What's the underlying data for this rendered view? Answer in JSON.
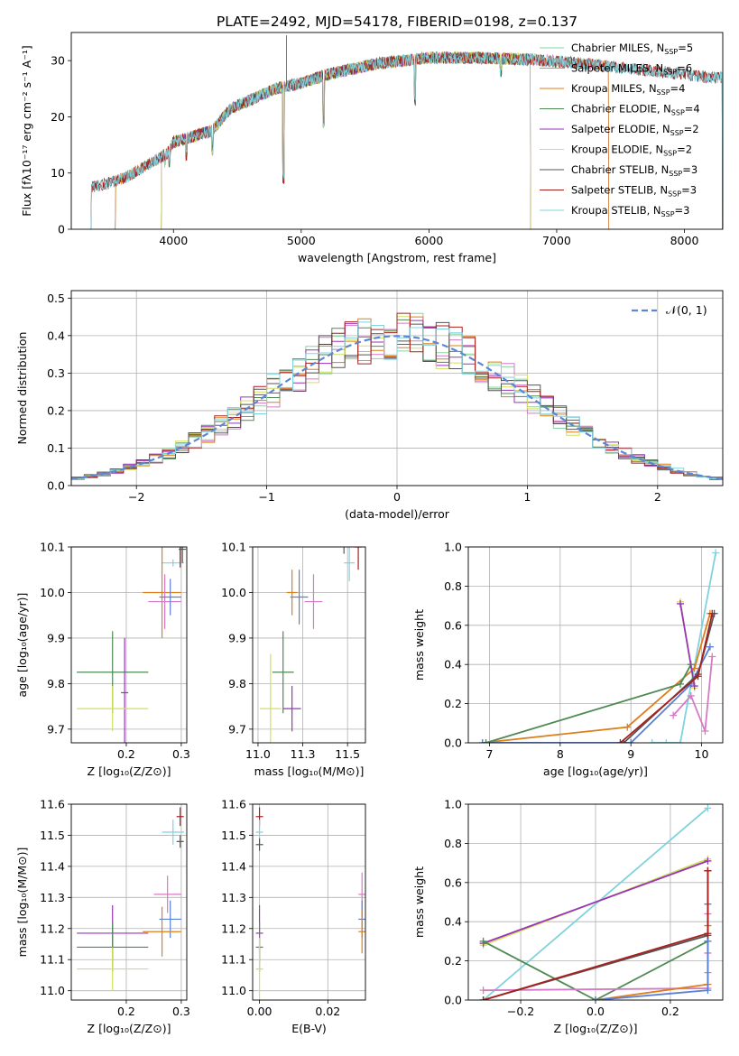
{
  "figure_title": "PLATE=2492, MJD=54178, FIBERID=0198, z=0.137",
  "colors": {
    "Chabrier MILES": "#8ad3a0",
    "Salpeter MILES": "#d57ac5",
    "Kroupa MILES": "#dd7e1b",
    "Chabrier ELODIE": "#4f8a54",
    "Salpeter ELODIE": "#9a34b9",
    "Kroupa ELODIE": "#d2e05b",
    "Chabrier STELIB": "#555555",
    "Salpeter STELIB": "#a8201e",
    "Kroupa STELIB": "#7fd3dd",
    "normal": "#5b87d4",
    "extra_blue": "#5a7fd6"
  },
  "chart_data": [
    {
      "type": "line",
      "panel": "spectrum",
      "xlabel": "wavelength [Angstrom, rest frame]",
      "ylabel": "Flux [fλ10⁻¹⁷ erg cm⁻² s⁻¹ A⁻¹]",
      "xlim": [
        3200,
        8300
      ],
      "ylim": [
        0,
        35
      ],
      "xticks": [
        4000,
        5000,
        6000,
        7000,
        8000
      ],
      "yticks": [
        0,
        10,
        20,
        30
      ],
      "legend": {
        "placement": "top-right",
        "entries": [
          {
            "model": "Chabrier MILES",
            "n": "5"
          },
          {
            "model": "Salpeter MILES",
            "n": "6"
          },
          {
            "model": "Kroupa MILES",
            "n": "4"
          },
          {
            "model": "Chabrier ELODIE",
            "n": "4"
          },
          {
            "model": "Salpeter ELODIE",
            "n": "2"
          },
          {
            "model": "Kroupa ELODIE",
            "n": "2"
          },
          {
            "model": "Chabrier STELIB",
            "n": "3"
          },
          {
            "model": "Salpeter STELIB",
            "n": "3"
          },
          {
            "model": "Kroupa STELIB",
            "n": "3"
          }
        ]
      },
      "continuum": [
        [
          3350,
          7.5
        ],
        [
          3500,
          8.2
        ],
        [
          3650,
          9.5
        ],
        [
          3800,
          11.5
        ],
        [
          3950,
          13.5
        ],
        [
          4000,
          15.5
        ],
        [
          4150,
          16.5
        ],
        [
          4300,
          17.5
        ],
        [
          4450,
          21.5
        ],
        [
          4600,
          23
        ],
        [
          4800,
          25
        ],
        [
          5000,
          26
        ],
        [
          5200,
          27.5
        ],
        [
          5400,
          28.5
        ],
        [
          5600,
          29.5
        ],
        [
          5800,
          30
        ],
        [
          6000,
          30.5
        ],
        [
          6400,
          30.5
        ],
        [
          6800,
          30.2
        ],
        [
          7200,
          29.5
        ],
        [
          7600,
          28.5
        ],
        [
          7900,
          27.8
        ],
        [
          8200,
          27
        ]
      ],
      "features": [
        [
          3934,
          11
        ],
        [
          3968,
          11
        ],
        [
          4102,
          12
        ],
        [
          4305,
          13
        ],
        [
          4861,
          8
        ],
        [
          5175,
          18
        ],
        [
          5890,
          22
        ],
        [
          6563,
          27
        ]
      ],
      "wavelength_ranges": {
        "Chabrier MILES": [
          3540,
          7410
        ],
        "Salpeter MILES": [
          3540,
          7410
        ],
        "Kroupa MILES": [
          3540,
          7410
        ],
        "Chabrier ELODIE": [
          3900,
          6800
        ],
        "Salpeter ELODIE": [
          3900,
          6800
        ],
        "Kroupa ELODIE": [
          3900,
          6800
        ],
        "Chabrier STELIB": [
          3350,
          8300
        ],
        "Salpeter STELIB": [
          3350,
          8300
        ],
        "Kroupa STELIB": [
          3350,
          8300
        ]
      },
      "spike": [
        4885,
        34.5
      ]
    },
    {
      "type": "histogram",
      "panel": "residuals",
      "xlabel": "(data-model)/error",
      "ylabel": "Normed distribution",
      "xlim": [
        -2.5,
        2.5
      ],
      "ylim": [
        0,
        0.52
      ],
      "xticks": [
        -2,
        -1,
        0,
        1,
        2
      ],
      "yticks": [
        0.0,
        0.1,
        0.2,
        0.3,
        0.4,
        0.5
      ],
      "bin_width": 0.1,
      "grid": true,
      "legend": {
        "placement": "top-right",
        "entries": [
          "𝒩(0, 1)"
        ]
      },
      "normal_curve": {
        "mean": 0,
        "sigma": 1
      }
    },
    {
      "type": "scatter",
      "panel": "age_vs_Z",
      "xlabel": "Z [log₁₀(Z/Z⊙)]",
      "ylabel": "age  [log₁₀(age/yr)]",
      "xlim": [
        0.1,
        0.31
      ],
      "ylim": [
        9.67,
        10.1
      ],
      "xticks": [
        0.2,
        0.3
      ],
      "yticks": [
        9.7,
        9.8,
        9.9,
        10.0,
        10.1
      ],
      "points": [
        {
          "model": "Kroupa STELIB",
          "x": 0.285,
          "y": 10.065,
          "xerr": 0.02,
          "yerr": 0
        },
        {
          "model": "Salpeter STELIB",
          "x": 0.298,
          "y": 10.105,
          "xerr": 0.005,
          "yerr": 0.05
        },
        {
          "model": "Chabrier STELIB",
          "x": 0.302,
          "y": 10.095,
          "xerr": 0.003,
          "yerr": 0.03
        },
        {
          "model": "Kroupa MILES",
          "x": 0.265,
          "y": 10.0,
          "xerr": 0.035,
          "yerr": 0.1
        },
        {
          "model": "Salpeter MILES",
          "x": 0.27,
          "y": 9.98,
          "xerr": 0.03,
          "yerr": 0.06
        },
        {
          "model": "extra",
          "x": 0.28,
          "y": 9.99,
          "xerr": 0.02,
          "yerr": 0.04
        },
        {
          "model": "Chabrier ELODIE",
          "x": 0.175,
          "y": 9.825,
          "xerr": 0.065,
          "yerr": 0.09
        },
        {
          "model": "Salpeter ELODIE",
          "x": 0.197,
          "y": 9.78,
          "xerr": 0,
          "yerr": 0.12
        },
        {
          "model": "Kroupa ELODIE",
          "x": 0.175,
          "y": 9.745,
          "xerr": 0.065,
          "yerr": 0.05
        }
      ]
    },
    {
      "type": "scatter",
      "panel": "age_vs_mass",
      "xlabel": "mass [log₁₀(M/M⊙)]",
      "xlim": [
        10.97,
        11.6
      ],
      "ylim": [
        9.67,
        10.1
      ],
      "xticks": [
        11.0,
        11.25,
        11.5
      ],
      "yticks": [
        9.7,
        9.8,
        9.9,
        10.0,
        10.1
      ],
      "points": [
        {
          "model": "Kroupa STELIB",
          "x": 11.51,
          "y": 10.065,
          "xerr": 0.03,
          "yerr": 0.04
        },
        {
          "model": "Chabrier STELIB",
          "x": 11.48,
          "y": 10.105,
          "xerr": 0.01,
          "yerr": 0.02
        },
        {
          "model": "Salpeter STELIB",
          "x": 11.56,
          "y": 10.1,
          "xerr": 0.01,
          "yerr": 0.05
        },
        {
          "model": "extra",
          "x": 11.23,
          "y": 9.99,
          "xerr": 0.05,
          "yerr": 0.06
        },
        {
          "model": "Kroupa MILES",
          "x": 11.19,
          "y": 10.0,
          "xerr": 0.03,
          "yerr": 0.05
        },
        {
          "model": "Salpeter MILES",
          "x": 11.31,
          "y": 9.98,
          "xerr": 0.05,
          "yerr": 0.06
        },
        {
          "model": "Chabrier ELODIE",
          "x": 11.14,
          "y": 9.825,
          "xerr": 0.06,
          "yerr": 0.09
        },
        {
          "model": "Salpeter ELODIE",
          "x": 11.19,
          "y": 9.745,
          "xerr": 0.05,
          "yerr": 0.05
        },
        {
          "model": "Kroupa ELODIE",
          "x": 11.07,
          "y": 9.745,
          "xerr": 0.06,
          "yerr": 0.12
        }
      ]
    },
    {
      "type": "line",
      "panel": "weight_vs_age",
      "xlabel": "age  [log₁₀(age/yr)]",
      "ylabel": "mass weight",
      "xlim": [
        6.7,
        10.3
      ],
      "ylim": [
        0,
        1
      ],
      "xticks": [
        7,
        8,
        9,
        10
      ],
      "yticks": [
        0.0,
        0.2,
        0.4,
        0.6,
        0.8,
        1.0
      ],
      "series": [
        {
          "model": "Kroupa STELIB",
          "points": [
            [
              9.3,
              0.0
            ],
            [
              9.5,
              0.0
            ],
            [
              9.7,
              0.0
            ],
            [
              9.8,
              0.2
            ],
            [
              10.2,
              0.97
            ]
          ]
        },
        {
          "model": "Kroupa ELODIE",
          "points": [
            [
              9.7,
              0.72
            ],
            [
              9.9,
              0.28
            ]
          ]
        },
        {
          "model": "Kroupa MILES",
          "points": [
            [
              6.9,
              0.0
            ],
            [
              8.95,
              0.08
            ],
            [
              9.9,
              0.38
            ],
            [
              10.12,
              0.66
            ]
          ]
        },
        {
          "model": "extra",
          "points": [
            [
              6.9,
              0.0
            ],
            [
              9.0,
              0.0
            ],
            [
              9.85,
              0.3
            ],
            [
              10.12,
              0.49
            ]
          ]
        },
        {
          "model": "Chabrier ELODIE",
          "points": [
            [
              6.95,
              0.0
            ],
            [
              9.7,
              0.3
            ],
            [
              9.85,
              0.4
            ]
          ]
        },
        {
          "model": "Salpeter MILES",
          "points": [
            [
              9.6,
              0.14
            ],
            [
              9.85,
              0.24
            ],
            [
              10.05,
              0.06
            ],
            [
              10.15,
              0.44
            ]
          ]
        },
        {
          "model": "Salpeter ELODIE",
          "points": [
            [
              9.7,
              0.71
            ],
            [
              9.9,
              0.29
            ]
          ]
        },
        {
          "model": "Chabrier STELIB",
          "points": [
            [
              8.9,
              0.0
            ],
            [
              9.95,
              0.35
            ],
            [
              10.18,
              0.66
            ]
          ]
        },
        {
          "model": "Salpeter STELIB",
          "points": [
            [
              8.85,
              0.0
            ],
            [
              9.95,
              0.34
            ],
            [
              10.15,
              0.66
            ]
          ]
        }
      ]
    },
    {
      "type": "scatter",
      "panel": "mass_vs_Z",
      "xlabel": "Z [log₁₀(Z/Z⊙)]",
      "ylabel": "mass [log₁₀(M/M⊙)]",
      "xlim": [
        0.1,
        0.31
      ],
      "ylim": [
        10.97,
        11.6
      ],
      "xticks": [
        0.2,
        0.3
      ],
      "yticks": [
        11.0,
        11.1,
        11.2,
        11.3,
        11.4,
        11.5,
        11.6
      ],
      "points": [
        {
          "model": "Salpeter STELIB",
          "x": 0.298,
          "y": 11.56,
          "xerr": 0.005,
          "yerr": 0.03
        },
        {
          "model": "Kroupa STELIB",
          "x": 0.285,
          "y": 11.51,
          "xerr": 0.02,
          "yerr": 0.04
        },
        {
          "model": "Chabrier STELIB",
          "x": 0.298,
          "y": 11.48,
          "xerr": 0.005,
          "yerr": 0.02
        },
        {
          "model": "Salpeter MILES",
          "x": 0.275,
          "y": 11.31,
          "xerr": 0.025,
          "yerr": 0.06
        },
        {
          "model": "extra",
          "x": 0.28,
          "y": 11.23,
          "xerr": 0.02,
          "yerr": 0.06
        },
        {
          "model": "Kroupa MILES",
          "x": 0.265,
          "y": 11.19,
          "xerr": 0.035,
          "yerr": 0.08
        },
        {
          "model": "Salpeter ELODIE",
          "x": 0.175,
          "y": 11.185,
          "xerr": 0.065,
          "yerr": 0.09
        },
        {
          "model": "Chabrier ELODIE",
          "x": 0.175,
          "y": 11.14,
          "xerr": 0.065,
          "yerr": 0.08
        },
        {
          "model": "Kroupa ELODIE",
          "x": 0.175,
          "y": 11.07,
          "xerr": 0.065,
          "yerr": 0.07
        }
      ]
    },
    {
      "type": "scatter",
      "panel": "mass_vs_EBV",
      "xlabel": "E(B-V)",
      "xlim": [
        -0.002,
        0.031
      ],
      "ylim": [
        10.97,
        11.6
      ],
      "xticks": [
        0.0,
        0.02
      ],
      "yticks": [
        11.0,
        11.1,
        11.2,
        11.3,
        11.4,
        11.5,
        11.6
      ],
      "points": [
        {
          "model": "Salpeter STELIB",
          "x": 0.0,
          "y": 11.56,
          "xerr": 0,
          "yerr": 0.03
        },
        {
          "model": "Kroupa STELIB",
          "x": 0.0,
          "y": 11.51,
          "xerr": 0,
          "yerr": 0.04
        },
        {
          "model": "Chabrier STELIB",
          "x": 0.0,
          "y": 11.47,
          "xerr": 0,
          "yerr": 0.02
        },
        {
          "model": "Salpeter ELODIE",
          "x": 0.0,
          "y": 11.185,
          "xerr": 0,
          "yerr": 0.09
        },
        {
          "model": "Chabrier ELODIE",
          "x": 0.0,
          "y": 11.14,
          "xerr": 0,
          "yerr": 0.08
        },
        {
          "model": "Kroupa ELODIE",
          "x": 0.0,
          "y": 11.07,
          "xerr": 0,
          "yerr": 0.1
        },
        {
          "model": "Salpeter MILES",
          "x": 0.03,
          "y": 11.31,
          "xerr": 0,
          "yerr": 0.07
        },
        {
          "model": "extra",
          "x": 0.03,
          "y": 11.23,
          "xerr": 0,
          "yerr": 0.06
        },
        {
          "model": "Kroupa MILES",
          "x": 0.03,
          "y": 11.19,
          "xerr": 0,
          "yerr": 0.07
        }
      ]
    },
    {
      "type": "line",
      "panel": "weight_vs_Z",
      "xlabel": "Z [log₁₀(Z/Z⊙)]",
      "ylabel": "mass weight",
      "xlim": [
        -0.34,
        0.34
      ],
      "ylim": [
        0,
        1
      ],
      "xticks": [
        -0.2,
        0.0,
        0.2
      ],
      "yticks": [
        0.0,
        0.2,
        0.4,
        0.6,
        0.8,
        1.0
      ],
      "series": [
        {
          "model": "Kroupa STELIB",
          "points": [
            [
              -0.3,
              0.0
            ],
            [
              0.3,
              0.98
            ]
          ]
        },
        {
          "model": "Kroupa ELODIE",
          "points": [
            [
              -0.3,
              0.28
            ],
            [
              0.3,
              0.72
            ]
          ]
        },
        {
          "model": "Salpeter ELODIE",
          "points": [
            [
              -0.3,
              0.29
            ],
            [
              0.3,
              0.71
            ]
          ]
        },
        {
          "model": "Chabrier ELODIE",
          "points": [
            [
              -0.3,
              0.3
            ],
            [
              0.0,
              0.0
            ],
            [
              0.3,
              0.3
            ]
          ]
        },
        {
          "model": "Salpeter MILES",
          "points": [
            [
              -0.3,
              0.05
            ],
            [
              0.3,
              0.06
            ],
            [
              0.3,
              0.44
            ],
            [
              0.3,
              0.24
            ],
            [
              0.3,
              0.14
            ]
          ]
        },
        {
          "model": "Kroupa MILES",
          "points": [
            [
              0.0,
              0.0
            ],
            [
              0.3,
              0.08
            ],
            [
              0.3,
              0.38
            ],
            [
              0.3,
              0.66
            ]
          ]
        },
        {
          "model": "extra",
          "points": [
            [
              0.0,
              0.0
            ],
            [
              0.3,
              0.05
            ],
            [
              0.3,
              0.3
            ],
            [
              0.3,
              0.49
            ]
          ]
        },
        {
          "model": "Chabrier STELIB",
          "points": [
            [
              -0.3,
              0.0
            ],
            [
              0.3,
              0.33
            ],
            [
              0.3,
              0.66
            ]
          ]
        },
        {
          "model": "Salpeter STELIB",
          "points": [
            [
              -0.3,
              0.0
            ],
            [
              0.3,
              0.34
            ],
            [
              0.3,
              0.66
            ]
          ]
        }
      ]
    }
  ]
}
